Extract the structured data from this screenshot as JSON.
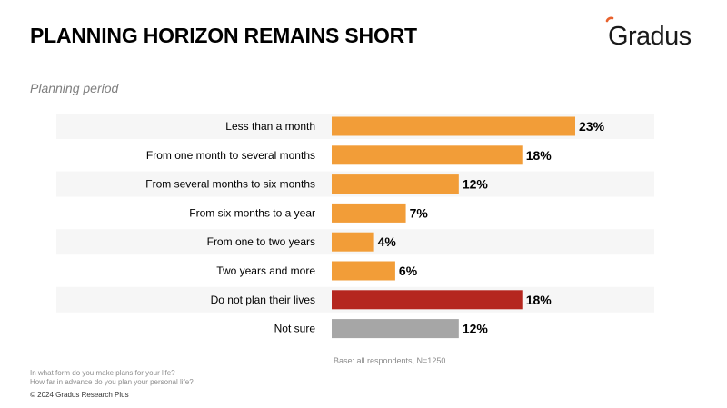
{
  "header": {
    "title": "PLANNING HORIZON REMAINS SHORT",
    "logo_text": "Gradus",
    "logo_color": "#e8612c"
  },
  "chart_data": {
    "type": "bar",
    "orientation": "horizontal",
    "title": "Planning period",
    "categories": [
      "Less than a month",
      "From one month to several months",
      "From several months to six months",
      "From six months to a year",
      "From one to two years",
      "Two years and more",
      "Do not plan their lives",
      "Not sure"
    ],
    "values": [
      23,
      18,
      12,
      7,
      4,
      6,
      18,
      12
    ],
    "value_labels": [
      "23%",
      "18%",
      "12%",
      "7%",
      "4%",
      "6%",
      "18%",
      "12%"
    ],
    "colors": [
      "#f29d38",
      "#f29d38",
      "#f29d38",
      "#f29d38",
      "#f29d38",
      "#f29d38",
      "#b5271f",
      "#a6a6a6"
    ],
    "unit": "%",
    "xlim": [
      0,
      23
    ],
    "xlabel": "",
    "ylabel": "",
    "grid": false
  },
  "notes": {
    "base": "Base: all respondents, N=1250",
    "question_1": "In what form do you make plans for your life?",
    "question_2": "How far in advance do you plan your personal life?",
    "copyright": "© 2024 Gradus Research Plus"
  }
}
